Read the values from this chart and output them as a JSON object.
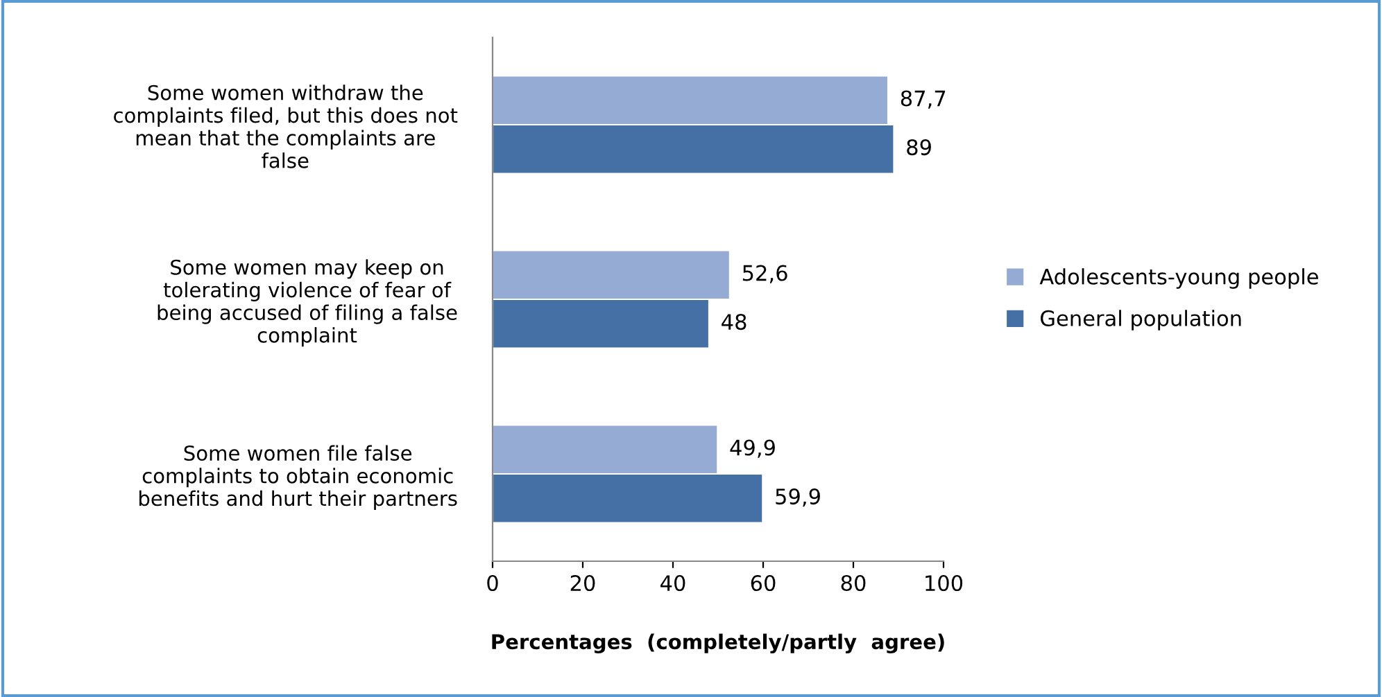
{
  "chart_data": {
    "type": "bar",
    "orientation": "horizontal",
    "xlabel": "Percentages  (completely/partly  agree)",
    "categories": [
      "Some women withdraw the\ncomplaints filed, but this does not\nmean that the complaints are\nfalse",
      "Some women may keep on\ntolerating violence of fear of\nbeing accused of filing a false\ncomplaint",
      "Some women file false\ncomplaints to obtain economic\nbenefits and hurt their partners"
    ],
    "series": [
      {
        "name": "Adolescents-young people",
        "color": "#95abd4",
        "values": [
          87.7,
          52.6,
          49.9
        ],
        "value_labels": [
          "87,7",
          "52,6",
          "49,9"
        ]
      },
      {
        "name": "General population",
        "color": "#4470a6",
        "values": [
          89,
          48,
          59.9
        ],
        "value_labels": [
          "89",
          "48",
          "59,9"
        ]
      }
    ],
    "xlim": [
      0,
      100
    ],
    "xticks": [
      0,
      20,
      40,
      60,
      80,
      100
    ],
    "grid": false,
    "legend": "right"
  }
}
